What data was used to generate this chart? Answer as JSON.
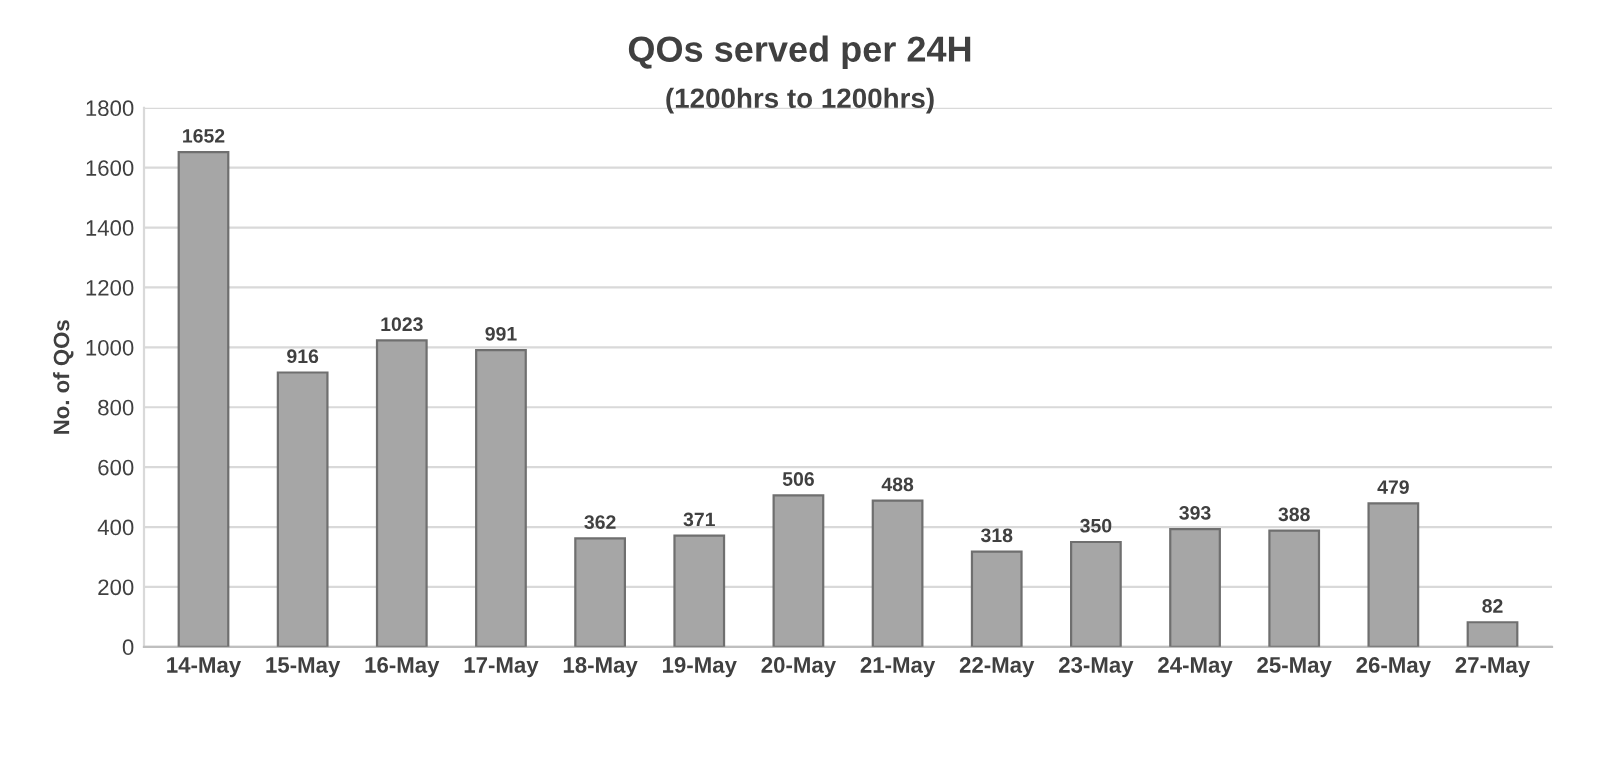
{
  "chart_data": {
    "type": "bar",
    "title": "QOs served per 24H",
    "subtitle": "(1200hrs to 1200hrs)",
    "ylabel": "No. of QOs",
    "categories": [
      "14-May",
      "15-May",
      "16-May",
      "17-May",
      "18-May",
      "19-May",
      "20-May",
      "21-May",
      "22-May",
      "23-May",
      "24-May",
      "25-May",
      "26-May",
      "27-May"
    ],
    "values": [
      1652,
      916,
      1023,
      991,
      362,
      371,
      506,
      488,
      318,
      350,
      393,
      388,
      479,
      82
    ],
    "color": "#a6a6a6",
    "ylim": [
      0,
      1800
    ],
    "yticks": [
      0,
      200,
      400,
      600,
      800,
      1000,
      1200,
      1400,
      1600,
      1800
    ],
    "grid": "y",
    "data_labels": true
  }
}
